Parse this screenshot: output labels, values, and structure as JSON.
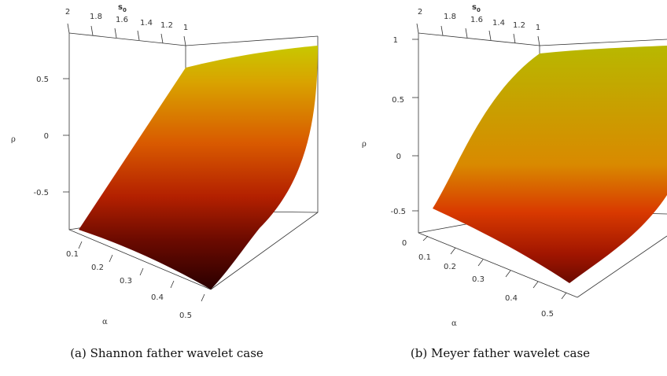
{
  "chart_data": [
    {
      "type": "surface",
      "caption_letter": "(a)",
      "caption": "Shannon father wavelet case",
      "xlabel": "α",
      "ylabel": "s",
      "ylabel_sub": "0",
      "zlabel": "ρ",
      "x_ticks": [
        "0.1",
        "0.2",
        "0.3",
        "0.4",
        "0.5"
      ],
      "y_ticks": [
        "2",
        "1.8",
        "1.6",
        "1.4",
        "1.2",
        "1"
      ],
      "z_ticks": [
        "0.5",
        "0",
        "-0.5"
      ],
      "xlim": [
        0.08,
        0.52
      ],
      "ylim": [
        1,
        2
      ],
      "zlim": [
        -0.9,
        0.85
      ],
      "surface": {
        "alpha": [
          0.08,
          0.52
        ],
        "s0_far": 1,
        "s0_near": 2,
        "rho_profile_far_edge": [
          [
            0.08,
            -0.9
          ],
          [
            0.2,
            -0.7
          ],
          [
            0.3,
            -0.3
          ],
          [
            0.4,
            0.2
          ],
          [
            0.45,
            0.55
          ],
          [
            0.52,
            0.8
          ]
        ],
        "rho_profile_near_edge": [
          [
            0.08,
            -0.9
          ],
          [
            0.3,
            -0.85
          ],
          [
            0.52,
            -0.9
          ]
        ]
      },
      "colormap": [
        "#2a0000",
        "#6b0a00",
        "#b32000",
        "#d95a00",
        "#d9a300",
        "#c8c800"
      ]
    },
    {
      "type": "surface",
      "caption_letter": "(b)",
      "caption": "Meyer father wavelet case",
      "xlabel": "α",
      "ylabel": "s",
      "ylabel_sub": "0",
      "zlabel": "ρ",
      "x_ticks": [
        "0",
        "0.1",
        "0.2",
        "0.3",
        "0.4",
        "0.5"
      ],
      "y_ticks": [
        "2",
        "1.8",
        "1.6",
        "1.4",
        "1.2",
        "1"
      ],
      "z_ticks": [
        "1",
        "0.5",
        "0",
        "-0.5"
      ],
      "xlim": [
        0,
        0.52
      ],
      "ylim": [
        1,
        2
      ],
      "zlim": [
        -0.6,
        1
      ],
      "surface": {
        "alpha": [
          0,
          0.52
        ],
        "s0_far": 1,
        "s0_near": 2,
        "rho_profile_far_edge": [
          [
            0,
            -0.55
          ],
          [
            0.1,
            -0.4
          ],
          [
            0.2,
            0.0
          ],
          [
            0.3,
            0.5
          ],
          [
            0.4,
            0.85
          ],
          [
            0.52,
            0.95
          ]
        ],
        "rho_profile_near_edge": [
          [
            0,
            -0.55
          ],
          [
            0.2,
            -0.3
          ],
          [
            0.4,
            -0.2
          ],
          [
            0.52,
            -0.35
          ]
        ]
      },
      "colormap": [
        "#6b0a00",
        "#a01500",
        "#d93a00",
        "#d98a00",
        "#c8b000",
        "#b8b800"
      ]
    }
  ]
}
